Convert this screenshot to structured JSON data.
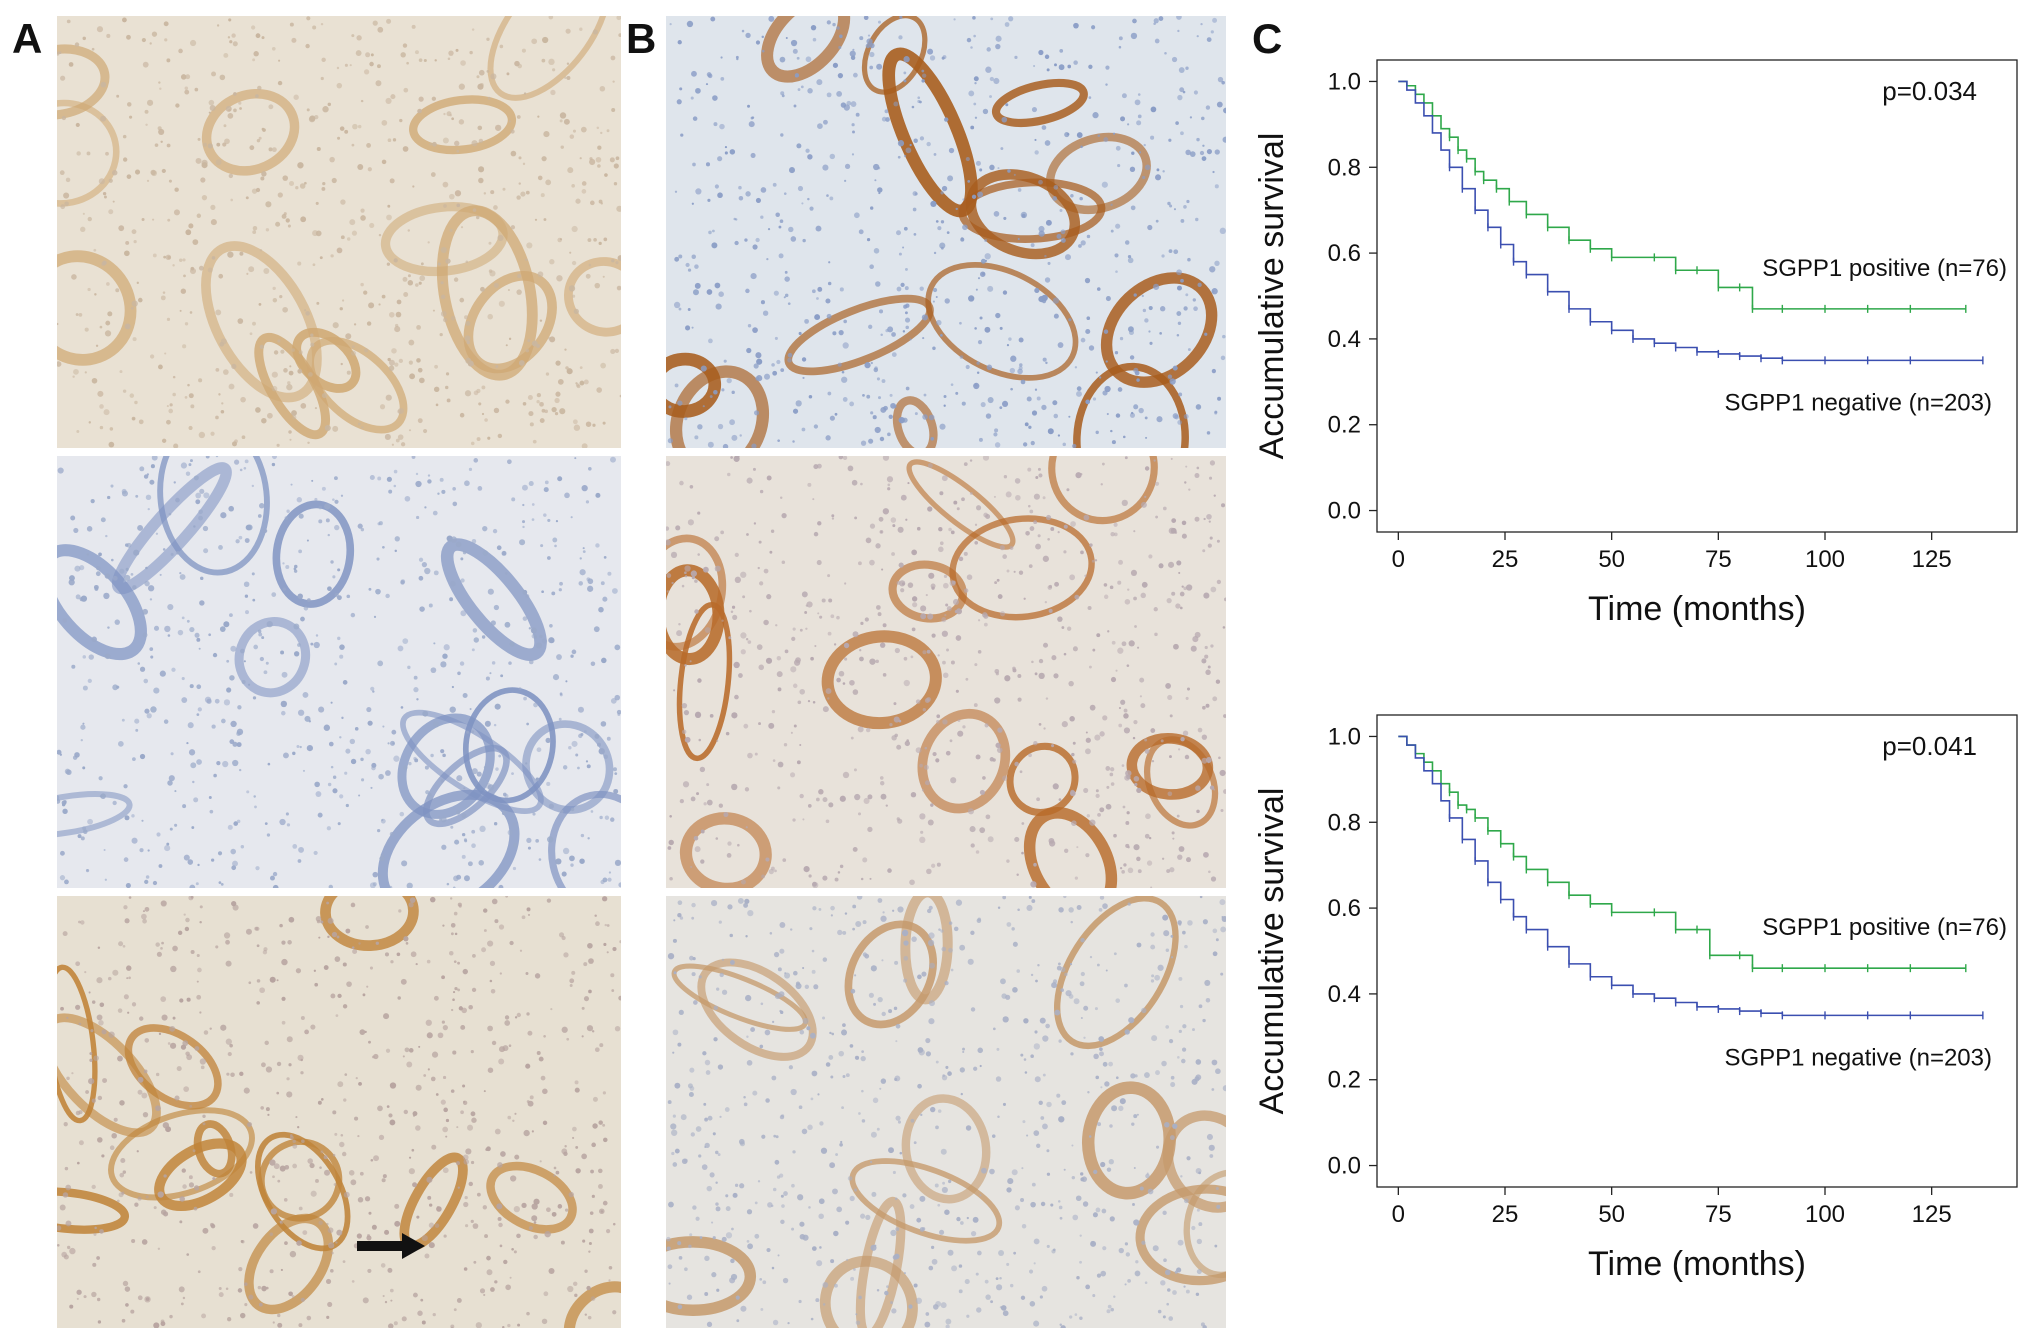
{
  "figure": {
    "panel_labels": [
      "A",
      "B",
      "C"
    ]
  },
  "micrographs": [
    {
      "id": "A1",
      "stain": "weak brown",
      "bg": "#e9e1d3",
      "cell": "#c9b6a0",
      "gland": "#cfa873"
    },
    {
      "id": "A2",
      "stain": "negative blue",
      "bg": "#e6e8ee",
      "cell": "#9aa9c9",
      "gland": "#7f93c2"
    },
    {
      "id": "A3",
      "stain": "strong brown",
      "bg": "#e7e0d2",
      "cell": "#b7a4a0",
      "gland": "#c0843a"
    },
    {
      "id": "B1",
      "stain": "strong brown",
      "bg": "#dfe5ec",
      "cell": "#8a9dc6",
      "gland": "#a85d1e"
    },
    {
      "id": "B2",
      "stain": "strong brown",
      "bg": "#e8e2da",
      "cell": "#b7a9b0",
      "gland": "#b86b2a"
    },
    {
      "id": "B3",
      "stain": "weak brown",
      "bg": "#e6e4e0",
      "cell": "#a9b0c6",
      "gland": "#c59a6c"
    }
  ],
  "chart_data": [
    {
      "type": "line",
      "title": "",
      "xlabel": "Time (months)",
      "ylabel": "Accumulative survival",
      "xlim": [
        -5,
        145
      ],
      "ylim": [
        -0.05,
        1.05
      ],
      "xticks": [
        0,
        25,
        50,
        75,
        100,
        125
      ],
      "yticks": [
        0.0,
        0.2,
        0.4,
        0.6,
        0.8,
        1.0
      ],
      "xtick_labels": [
        "0",
        "25",
        "50",
        "75",
        "100",
        "125"
      ],
      "ytick_labels": [
        "0.0",
        "0.2",
        "0.4",
        "0.6",
        "0.8",
        "1.0"
      ],
      "annotation": "p=0.034",
      "series": [
        {
          "name": "SGPP1 positive (n=76)",
          "color": "#2fa84a",
          "x": [
            0,
            2,
            4,
            6,
            8,
            10,
            12,
            14,
            16,
            18,
            20,
            23,
            26,
            30,
            35,
            40,
            45,
            50,
            60,
            65,
            70,
            75,
            80,
            83,
            90,
            100,
            110,
            120,
            133
          ],
          "y": [
            1.0,
            0.99,
            0.97,
            0.95,
            0.92,
            0.89,
            0.87,
            0.84,
            0.82,
            0.79,
            0.77,
            0.75,
            0.72,
            0.69,
            0.66,
            0.63,
            0.61,
            0.59,
            0.59,
            0.56,
            0.56,
            0.52,
            0.52,
            0.47,
            0.47,
            0.47,
            0.47,
            0.47,
            0.47
          ]
        },
        {
          "name": "SGPP1 negative (n=203)",
          "color": "#3b4fb0",
          "x": [
            0,
            2,
            4,
            6,
            8,
            10,
            12,
            15,
            18,
            21,
            24,
            27,
            30,
            35,
            40,
            45,
            50,
            55,
            60,
            65,
            70,
            75,
            80,
            85,
            90,
            100,
            110,
            120,
            137
          ],
          "y": [
            1.0,
            0.98,
            0.95,
            0.92,
            0.88,
            0.84,
            0.8,
            0.75,
            0.7,
            0.66,
            0.62,
            0.58,
            0.55,
            0.51,
            0.47,
            0.44,
            0.42,
            0.4,
            0.39,
            0.38,
            0.37,
            0.365,
            0.36,
            0.355,
            0.35,
            0.35,
            0.35,
            0.35,
            0.35
          ]
        }
      ],
      "labels": [
        "SGPP1 positive (n=76)",
        "SGPP1 negative (n=203)"
      ]
    },
    {
      "type": "line",
      "title": "",
      "xlabel": "Time (months)",
      "ylabel": "Accumulative survival",
      "xlim": [
        -5,
        145
      ],
      "ylim": [
        -0.05,
        1.05
      ],
      "xticks": [
        0,
        25,
        50,
        75,
        100,
        125
      ],
      "yticks": [
        0.0,
        0.2,
        0.4,
        0.6,
        0.8,
        1.0
      ],
      "xtick_labels": [
        "0",
        "25",
        "50",
        "75",
        "100",
        "125"
      ],
      "ytick_labels": [
        "0.0",
        "0.2",
        "0.4",
        "0.6",
        "0.8",
        "1.0"
      ],
      "annotation": "p=0.041",
      "series": [
        {
          "name": "SGPP1 positive (n=76)",
          "color": "#2fa84a",
          "x": [
            0,
            2,
            4,
            6,
            8,
            10,
            12,
            14,
            16,
            18,
            21,
            24,
            27,
            30,
            35,
            40,
            45,
            50,
            60,
            65,
            70,
            73,
            80,
            83,
            90,
            100,
            110,
            120,
            133
          ],
          "y": [
            1.0,
            0.98,
            0.96,
            0.94,
            0.92,
            0.89,
            0.87,
            0.84,
            0.83,
            0.81,
            0.78,
            0.75,
            0.72,
            0.69,
            0.66,
            0.63,
            0.61,
            0.59,
            0.59,
            0.55,
            0.55,
            0.49,
            0.49,
            0.46,
            0.46,
            0.46,
            0.46,
            0.46,
            0.46
          ]
        },
        {
          "name": "SGPP1 negative (n=203)",
          "color": "#3b4fb0",
          "x": [
            0,
            2,
            4,
            6,
            8,
            10,
            12,
            15,
            18,
            21,
            24,
            27,
            30,
            35,
            40,
            45,
            50,
            55,
            60,
            65,
            70,
            75,
            80,
            85,
            90,
            100,
            110,
            120,
            137
          ],
          "y": [
            1.0,
            0.98,
            0.95,
            0.92,
            0.89,
            0.85,
            0.81,
            0.76,
            0.71,
            0.66,
            0.62,
            0.58,
            0.55,
            0.51,
            0.47,
            0.44,
            0.42,
            0.4,
            0.39,
            0.38,
            0.37,
            0.365,
            0.36,
            0.355,
            0.35,
            0.35,
            0.35,
            0.35,
            0.35
          ]
        }
      ],
      "labels": [
        "SGPP1 positive (n=76)",
        "SGPP1 negative (n=203)"
      ]
    }
  ]
}
